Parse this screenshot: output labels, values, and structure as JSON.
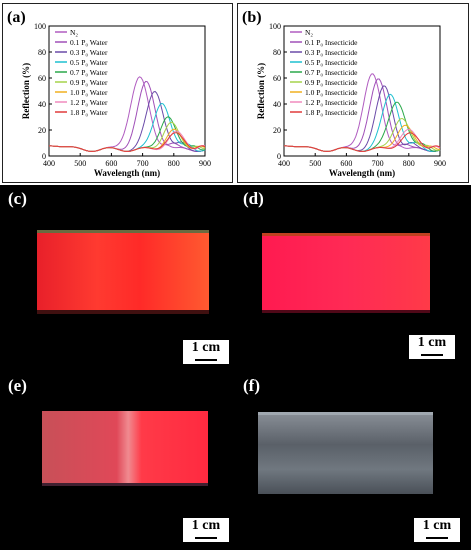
{
  "figure": {
    "panels": [
      {
        "label": "(a)",
        "chart_data": {
          "type": "line",
          "xlabel": "Wavelength (nm)",
          "ylabel": "Reflection (%)",
          "xlim": [
            400,
            900
          ],
          "ylim": [
            0,
            100
          ],
          "xticks": [
            400,
            500,
            600,
            700,
            800,
            900
          ],
          "yticks": [
            0,
            20,
            40,
            60,
            80,
            100
          ],
          "legend_position": "top-left",
          "series": [
            {
              "name": "N₂",
              "color": "#b05cc0",
              "peak": 690,
              "height": 60,
              "width": 42
            },
            {
              "name": "0.1 P₀ Water",
              "color": "#a050b8",
              "peak": 712,
              "height": 56,
              "width": 40
            },
            {
              "name": "0.3 P₀ Water",
              "color": "#6a4aa8",
              "peak": 740,
              "height": 50,
              "width": 38
            },
            {
              "name": "0.5 P₀ Water",
              "color": "#1ec0d0",
              "peak": 762,
              "height": 42,
              "width": 36
            },
            {
              "name": "0.7 P₀ Water",
              "color": "#2aa84a",
              "peak": 780,
              "height": 31,
              "width": 34
            },
            {
              "name": "0.9 P₀ Water",
              "color": "#a6d24a",
              "peak": 790,
              "height": 26,
              "width": 34
            },
            {
              "name": "1.0 P₀ Water",
              "color": "#f0b020",
              "peak": 798,
              "height": 20,
              "width": 34
            },
            {
              "name": "1.2 P₀ Water",
              "color": "#f08abe",
              "peak": 806,
              "height": 18,
              "width": 36
            },
            {
              "name": "1.8 P₀ Water",
              "color": "#e03a3a",
              "peak": 802,
              "height": 17,
              "width": 38
            }
          ]
        }
      },
      {
        "label": "(b)",
        "chart_data": {
          "type": "line",
          "xlabel": "Wavelength (nm)",
          "ylabel": "Reflection (%)",
          "xlim": [
            400,
            900
          ],
          "ylim": [
            0,
            100
          ],
          "xticks": [
            400,
            500,
            600,
            700,
            800,
            900
          ],
          "yticks": [
            0,
            20,
            40,
            60,
            80,
            100
          ],
          "legend_position": "top-left",
          "series": [
            {
              "name": "N₂",
              "color": "#b05cc0",
              "peak": 682,
              "height": 63,
              "width": 40
            },
            {
              "name": "0.1 P₀ Insecticide",
              "color": "#a050b8",
              "peak": 702,
              "height": 58,
              "width": 40
            },
            {
              "name": "0.3 P₀ Insecticide",
              "color": "#6a4aa8",
              "peak": 722,
              "height": 53,
              "width": 38
            },
            {
              "name": "0.5 P₀ Insecticide",
              "color": "#1ec0d0",
              "peak": 742,
              "height": 48,
              "width": 38
            },
            {
              "name": "0.7 P₀ Insecticide",
              "color": "#2aa84a",
              "peak": 762,
              "height": 43,
              "width": 38
            },
            {
              "name": "0.9 P₀ Insecticide",
              "color": "#a6d24a",
              "peak": 776,
              "height": 30,
              "width": 36
            },
            {
              "name": "1.0 P₀ Insecticide",
              "color": "#f0b020",
              "peak": 786,
              "height": 24,
              "width": 36
            },
            {
              "name": "1.2 P₀ Insecticide",
              "color": "#f08abe",
              "peak": 796,
              "height": 20,
              "width": 38
            },
            {
              "name": "1.8 P₀ Insecticide",
              "color": "#e03a3a",
              "peak": 800,
              "height": 17,
              "width": 40
            }
          ]
        }
      }
    ],
    "photos": [
      {
        "label": "(c)",
        "scale": "1 cm",
        "color_a": "#ff2a2a",
        "color_b": "#ff5a3a"
      },
      {
        "label": "(d)",
        "scale": "1 cm",
        "color_a": "#ff1a55",
        "color_b": "#ff3a4a"
      },
      {
        "label": "(e)",
        "scale": "1 cm",
        "color_a": "#d84a5a",
        "color_b": "#ff3a50"
      },
      {
        "label": "(f)",
        "scale": "1 cm",
        "color_a": "#4a5058",
        "color_b": "#8a9098"
      }
    ]
  }
}
